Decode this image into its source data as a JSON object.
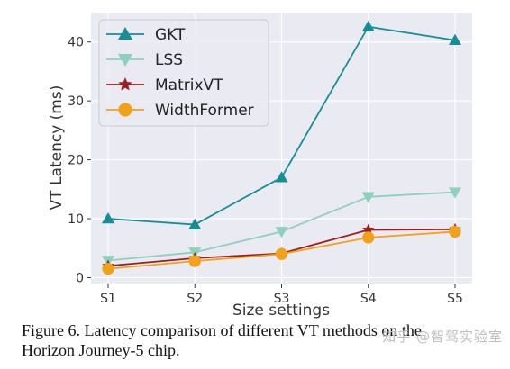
{
  "chart_data": {
    "type": "line",
    "xlabel": "Size settings",
    "ylabel": "VT Latency (ms)",
    "categories": [
      "S1",
      "S2",
      "S3",
      "S4",
      "S5"
    ],
    "ylim": [
      -1,
      45
    ],
    "yticks": [
      0,
      10,
      20,
      30,
      40
    ],
    "grid": true,
    "legend_position": "top-left",
    "series": [
      {
        "name": "GKT",
        "values": [
          10.0,
          9.0,
          17.0,
          42.6,
          40.3
        ],
        "color": "#178d96",
        "marker": "triangle-up"
      },
      {
        "name": "LSS",
        "values": [
          2.9,
          4.3,
          7.8,
          13.7,
          14.5
        ],
        "color": "#8fd0bd",
        "marker": "triangle-down"
      },
      {
        "name": "MatrixVT",
        "values": [
          2.0,
          3.3,
          4.1,
          8.1,
          8.2
        ],
        "color": "#9c1e1e",
        "marker": "star"
      },
      {
        "name": "WidthFormer",
        "values": [
          1.5,
          2.8,
          4.0,
          6.8,
          7.8
        ],
        "color": "#f0a21a",
        "marker": "circle"
      }
    ]
  },
  "caption": {
    "line1": "Figure 6.  Latency comparison of different VT methods on the",
    "line2": "Horizon Journey-5 chip."
  },
  "watermark": "知乎 @智驾实验室"
}
